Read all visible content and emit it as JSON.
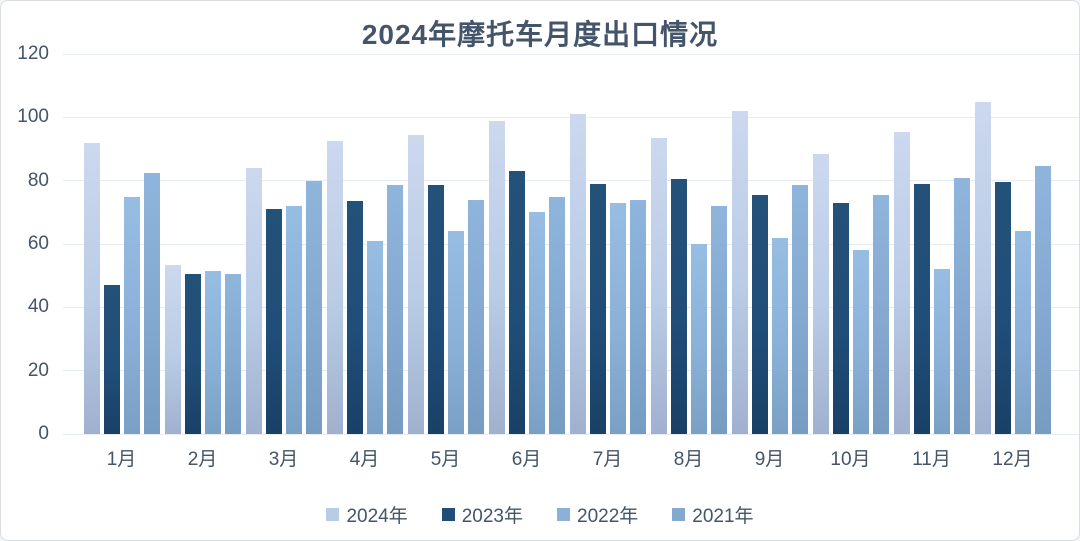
{
  "text_color": "#44546a",
  "gridline_color": "#e7ecf3",
  "chart_data": {
    "type": "bar",
    "title": "2024年摩托车月度出口情况",
    "categories": [
      "1月",
      "2月",
      "3月",
      "4月",
      "5月",
      "6月",
      "7月",
      "8月",
      "9月",
      "10月",
      "11月",
      "12月"
    ],
    "series": [
      {
        "name": "2024年",
        "color": "#b9cce6",
        "color_top": "#ccd8ee",
        "color_bottom": "#9fb1cf",
        "values": [
          92,
          53.5,
          84,
          92.5,
          94.5,
          99,
          101,
          93.5,
          102,
          88.5,
          95.5,
          105
        ]
      },
      {
        "name": "2023年",
        "color": "#1f4e79",
        "color_top": "#245178",
        "color_bottom": "#1a4066",
        "values": [
          47,
          50.5,
          71,
          73.5,
          78.5,
          83,
          79,
          80.5,
          75.5,
          73,
          79,
          79.5
        ]
      },
      {
        "name": "2022年",
        "color": "#8bb1d9",
        "color_top": "#97bde3",
        "color_bottom": "#7aa0c5",
        "values": [
          75,
          51.5,
          72,
          61,
          64,
          70,
          73,
          60,
          62,
          58,
          52,
          64
        ]
      },
      {
        "name": "2021年",
        "color": "#83a9d1",
        "color_top": "#8fb5dc",
        "color_bottom": "#769cc2",
        "values": [
          82.5,
          50.5,
          80,
          78.5,
          74,
          75,
          74,
          72,
          78.5,
          75.5,
          81,
          84.5
        ]
      }
    ],
    "ylim": [
      0,
      120
    ],
    "yticks": [
      0,
      20,
      40,
      60,
      80,
      100,
      120
    ],
    "grid": true,
    "legend_position": "bottom"
  }
}
